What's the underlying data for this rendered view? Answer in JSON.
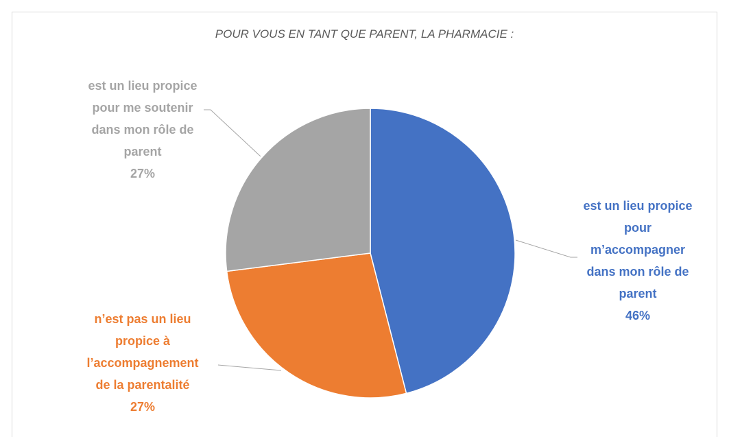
{
  "chart_data": {
    "type": "pie",
    "title": "POUR VOUS EN TANT QUE PARENT, LA PHARMACIE :",
    "categories": [
      "est un lieu propice pour m’accompagner dans mon rôle de parent",
      "n’est pas un lieu propice à l’accompagnement de la parentalité",
      "est un lieu propice pour me soutenir dans mon rôle de parent"
    ],
    "values": [
      46,
      27,
      27
    ],
    "value_labels": [
      "46%",
      "27%",
      "27%"
    ],
    "colors": [
      "#4472c4",
      "#ed7d31",
      "#a5a5a5"
    ]
  }
}
